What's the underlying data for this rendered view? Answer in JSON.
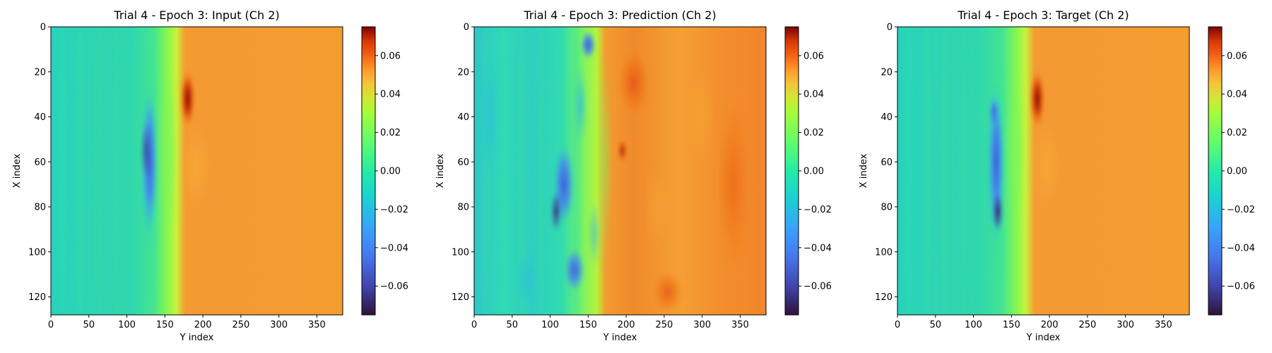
{
  "chart_data": [
    {
      "type": "heatmap",
      "title": "Trial 4 - Epoch 3: Input (Ch 2)",
      "xlabel": "Y index",
      "ylabel": "X index",
      "xlim": [
        0,
        384
      ],
      "ylim": [
        128,
        0
      ],
      "xticks": [
        0,
        50,
        100,
        150,
        200,
        250,
        300,
        350
      ],
      "yticks": [
        0,
        20,
        40,
        60,
        80,
        100,
        120
      ],
      "colormap": "turbo",
      "clim": [
        -0.075,
        0.075
      ],
      "colorbar_ticks": [
        "0.06",
        "0.04",
        "0.02",
        "0.00",
        "−0.02",
        "−0.04",
        "−0.06"
      ],
      "summary": {
        "left_value": -0.025,
        "right_value": 0.038,
        "front_y": 178
      }
    },
    {
      "type": "heatmap",
      "title": "Trial 4 - Epoch 3: Prediction (Ch 2)",
      "xlabel": "Y index",
      "ylabel": "X index",
      "xlim": [
        0,
        384
      ],
      "ylim": [
        128,
        0
      ],
      "xticks": [
        0,
        50,
        100,
        150,
        200,
        250,
        300,
        350
      ],
      "yticks": [
        0,
        20,
        40,
        60,
        80,
        100,
        120
      ],
      "colormap": "turbo",
      "clim": [
        -0.075,
        0.075
      ],
      "colorbar_ticks": [
        "0.06",
        "0.04",
        "0.02",
        "0.00",
        "−0.02",
        "−0.04",
        "−0.06"
      ],
      "summary": {
        "left_value": -0.028,
        "right_value": 0.042,
        "front_y": 172
      }
    },
    {
      "type": "heatmap",
      "title": "Trial 4 - Epoch 3: Target (Ch 2)",
      "xlabel": "Y index",
      "ylabel": "X index",
      "xlim": [
        0,
        384
      ],
      "ylim": [
        128,
        0
      ],
      "xticks": [
        0,
        50,
        100,
        150,
        200,
        250,
        300,
        350
      ],
      "yticks": [
        0,
        20,
        40,
        60,
        80,
        100,
        120
      ],
      "colormap": "turbo",
      "clim": [
        -0.075,
        0.075
      ],
      "colorbar_ticks": [
        "0.06",
        "0.04",
        "0.02",
        "0.00",
        "−0.02",
        "−0.04",
        "−0.06"
      ],
      "summary": {
        "left_value": -0.025,
        "right_value": 0.038,
        "front_y": 182
      }
    }
  ]
}
